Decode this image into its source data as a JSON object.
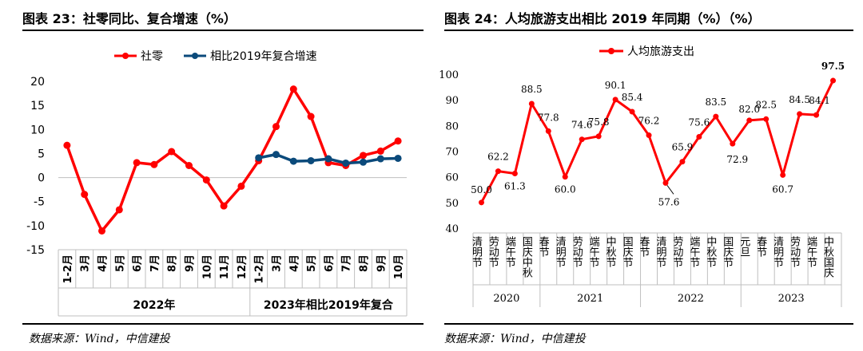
{
  "left": {
    "title": "图表 23：社零同比、复合增速（%）",
    "source": "数据来源：Wind，中信建投",
    "chart_data": {
      "type": "line",
      "categories": [
        "1-2月",
        "3月",
        "4月",
        "5月",
        "6月",
        "7月",
        "8月",
        "9月",
        "10月",
        "11月",
        "12月",
        "1-2月",
        "3月",
        "4月",
        "5月",
        "6月",
        "7月",
        "8月",
        "9月",
        "10月"
      ],
      "group_labels": [
        {
          "label": "2022年",
          "from": 0,
          "to": 10
        },
        {
          "label": "2023年相比2019年复合",
          "from": 11,
          "to": 19
        }
      ],
      "series": [
        {
          "name": "社零",
          "color": "#ff0000",
          "values": [
            6.7,
            -3.5,
            -11.1,
            -6.7,
            3.1,
            2.7,
            5.4,
            2.5,
            -0.5,
            -5.9,
            -1.8,
            3.5,
            10.6,
            18.4,
            12.7,
            3.1,
            2.5,
            4.6,
            5.5,
            7.6
          ]
        },
        {
          "name": "相比2019年复合增速",
          "color": "#0b4a7b",
          "values": [
            null,
            null,
            null,
            null,
            null,
            null,
            null,
            null,
            null,
            null,
            null,
            4.1,
            4.8,
            3.4,
            3.5,
            3.9,
            3.0,
            3.2,
            3.9,
            4.0
          ]
        }
      ],
      "ylim": [
        -15,
        20
      ],
      "yticks": [
        "20",
        "15",
        "10",
        "5",
        "0",
        "-5",
        "-10",
        "-15"
      ],
      "ytick_values": [
        20,
        15,
        10,
        5,
        0,
        -5,
        -10,
        -15
      ]
    }
  },
  "right": {
    "title": "图表 24：人均旅游支出相比 2019 年同期（%）（%）",
    "source": "数据来源：Wind，中信建投",
    "chart_data": {
      "type": "line",
      "categories": [
        "清明节",
        "劳动节",
        "端午节",
        "国庆中秋",
        "春节",
        "清明节",
        "劳动节",
        "端午节",
        "中秋节",
        "国庆节",
        "春节",
        "清明节",
        "劳动节",
        "端午节",
        "中秋节",
        "国庆节",
        "元旦",
        "春节",
        "清明节",
        "劳动节",
        "端午节",
        "中秋国庆"
      ],
      "group_labels": [
        {
          "label": "2020",
          "from": 0,
          "to": 3
        },
        {
          "label": "2021",
          "from": 4,
          "to": 9
        },
        {
          "label": "2022",
          "from": 10,
          "to": 15
        },
        {
          "label": "2023",
          "from": 16,
          "to": 21
        }
      ],
      "series": [
        {
          "name": "人均旅游支出",
          "color": "#ff0000",
          "values": [
            50.0,
            62.2,
            61.3,
            88.5,
            77.8,
            60.0,
            74.6,
            75.8,
            90.1,
            85.4,
            76.2,
            57.6,
            65.9,
            75.6,
            83.5,
            72.9,
            82.0,
            82.5,
            60.7,
            84.5,
            84.1,
            97.5
          ]
        }
      ],
      "data_labels": [
        "50.0",
        "62.2",
        "61.3",
        "88.5",
        "77.8",
        "60.0",
        "74.6",
        "75.8",
        "90.1",
        "85.4",
        "76.2",
        "57.6",
        "65.9",
        "75.6",
        "83.5",
        "72.9",
        "82.0",
        "82.5",
        "60.7",
        "84.5",
        "84.1",
        "97.5"
      ],
      "ylim": [
        40,
        100
      ],
      "yticks": [
        "100",
        "90",
        "80",
        "70",
        "60",
        "50",
        "40"
      ],
      "ytick_values": [
        100,
        90,
        80,
        70,
        60,
        50,
        40
      ]
    }
  }
}
